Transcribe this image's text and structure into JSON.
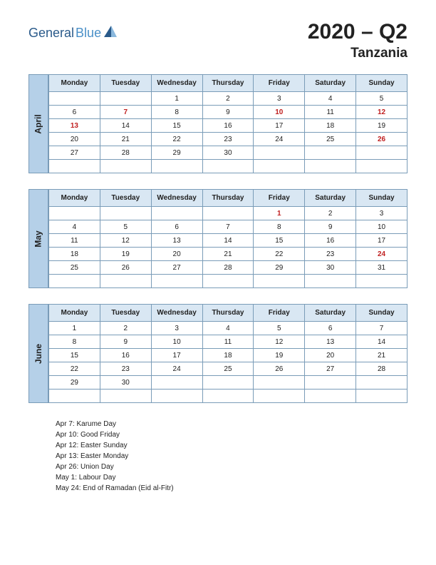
{
  "logo": {
    "part1": "General",
    "part2": "Blue"
  },
  "title": {
    "quarter": "2020 – Q2",
    "country": "Tanzania"
  },
  "colors": {
    "month_tab_bg": "#b5d0e8",
    "header_row_bg": "#d9e7f3",
    "border": "#7a9cb8",
    "holiday_text": "#c02020",
    "text": "#222222",
    "logo_dark": "#2a5a8a",
    "logo_light": "#4a90c8"
  },
  "weekdays": [
    "Monday",
    "Tuesday",
    "Wednesday",
    "Thursday",
    "Friday",
    "Saturday",
    "Sunday"
  ],
  "months": [
    {
      "name": "April",
      "rows": [
        [
          "",
          "",
          "1",
          "2",
          "3",
          "4",
          "5"
        ],
        [
          "6",
          "7",
          "8",
          "9",
          "10",
          "11",
          "12"
        ],
        [
          "13",
          "14",
          "15",
          "16",
          "17",
          "18",
          "19"
        ],
        [
          "20",
          "21",
          "22",
          "23",
          "24",
          "25",
          "26"
        ],
        [
          "27",
          "28",
          "29",
          "30",
          "",
          "",
          ""
        ],
        [
          "",
          "",
          "",
          "",
          "",
          "",
          ""
        ]
      ],
      "holidays": [
        [
          1,
          1
        ],
        [
          1,
          4
        ],
        [
          1,
          6
        ],
        [
          2,
          0
        ],
        [
          3,
          6
        ]
      ]
    },
    {
      "name": "May",
      "rows": [
        [
          "",
          "",
          "",
          "",
          "1",
          "2",
          "3"
        ],
        [
          "4",
          "5",
          "6",
          "7",
          "8",
          "9",
          "10"
        ],
        [
          "11",
          "12",
          "13",
          "14",
          "15",
          "16",
          "17"
        ],
        [
          "18",
          "19",
          "20",
          "21",
          "22",
          "23",
          "24"
        ],
        [
          "25",
          "26",
          "27",
          "28",
          "29",
          "30",
          "31"
        ],
        [
          "",
          "",
          "",
          "",
          "",
          "",
          ""
        ]
      ],
      "holidays": [
        [
          0,
          4
        ],
        [
          3,
          6
        ]
      ]
    },
    {
      "name": "June",
      "rows": [
        [
          "1",
          "2",
          "3",
          "4",
          "5",
          "6",
          "7"
        ],
        [
          "8",
          "9",
          "10",
          "11",
          "12",
          "13",
          "14"
        ],
        [
          "15",
          "16",
          "17",
          "18",
          "19",
          "20",
          "21"
        ],
        [
          "22",
          "23",
          "24",
          "25",
          "26",
          "27",
          "28"
        ],
        [
          "29",
          "30",
          "",
          "",
          "",
          "",
          ""
        ],
        [
          "",
          "",
          "",
          "",
          "",
          "",
          ""
        ]
      ],
      "holidays": []
    }
  ],
  "holiday_list": [
    "Apr 7: Karume Day",
    "Apr 10: Good Friday",
    "Apr 12: Easter Sunday",
    "Apr 13: Easter Monday",
    "Apr 26: Union Day",
    "May 1: Labour Day",
    "May 24: End of Ramadan (Eid al-Fitr)"
  ]
}
